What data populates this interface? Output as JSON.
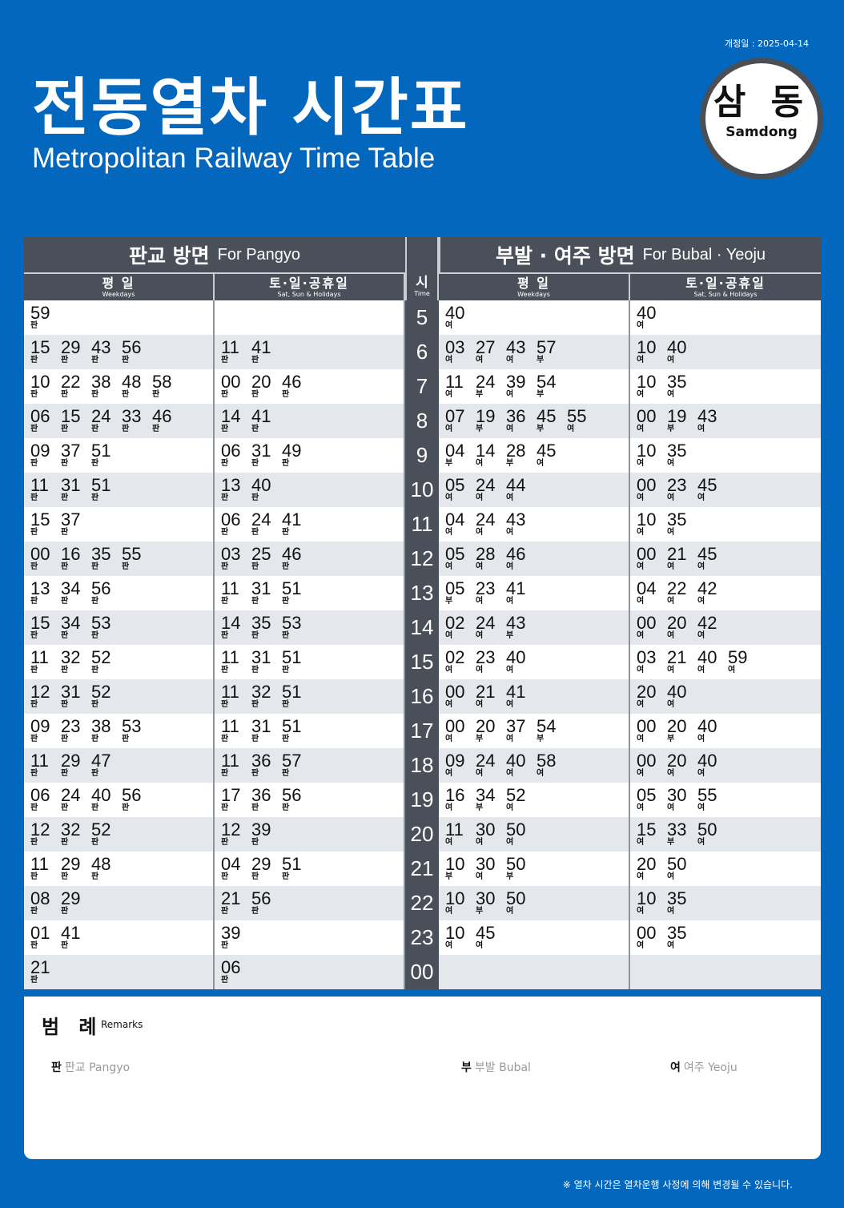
{
  "revision": "개정일 : 2025-04-14",
  "title_ko": "전동열차 시간표",
  "title_en": "Metropolitan Railway Time Table",
  "station": {
    "ko": "삼 동",
    "en": "Samdong"
  },
  "left": {
    "title_ko": "판교 방면",
    "title_en": "For Pangyo"
  },
  "right": {
    "title_ko": "부발 · 여주 방면",
    "title_en": "For Bubal · Yeoju"
  },
  "weekday": {
    "ko": "평 일",
    "en": "Weekdays"
  },
  "weekend": {
    "ko": "토·일·공휴일",
    "en": "Sat, Sun & Holidays"
  },
  "time_hdr": {
    "ko": "시",
    "en": "Time"
  },
  "rows": [
    {
      "h": "5",
      "lw": [
        "59판"
      ],
      "le": [],
      "rw": [
        "40여"
      ],
      "re": [
        "40여"
      ]
    },
    {
      "h": "6",
      "lw": [
        "15판",
        "29판",
        "43판",
        "56판"
      ],
      "le": [
        "11판",
        "41판"
      ],
      "rw": [
        "03여",
        "27여",
        "43여",
        "57부"
      ],
      "re": [
        "10여",
        "40여"
      ]
    },
    {
      "h": "7",
      "lw": [
        "10판",
        "22판",
        "38판",
        "48판",
        "58판"
      ],
      "le": [
        "00판",
        "20판",
        "46판"
      ],
      "rw": [
        "11여",
        "24부",
        "39여",
        "54부"
      ],
      "re": [
        "10여",
        "35여"
      ]
    },
    {
      "h": "8",
      "lw": [
        "06판",
        "15판",
        "24판",
        "33판",
        "46판"
      ],
      "le": [
        "14판",
        "41판"
      ],
      "rw": [
        "07여",
        "19부",
        "36여",
        "45부",
        "55여"
      ],
      "re": [
        "00여",
        "19부",
        "43여"
      ]
    },
    {
      "h": "9",
      "lw": [
        "09판",
        "37판",
        "51판"
      ],
      "le": [
        "06판",
        "31판",
        "49판"
      ],
      "rw": [
        "04부",
        "14여",
        "28부",
        "45여"
      ],
      "re": [
        "10여",
        "35여"
      ]
    },
    {
      "h": "10",
      "lw": [
        "11판",
        "31판",
        "51판"
      ],
      "le": [
        "13판",
        "40판"
      ],
      "rw": [
        "05여",
        "24여",
        "44여"
      ],
      "re": [
        "00여",
        "23여",
        "45여"
      ]
    },
    {
      "h": "11",
      "lw": [
        "15판",
        "37판"
      ],
      "le": [
        "06판",
        "24판",
        "41판"
      ],
      "rw": [
        "04여",
        "24여",
        "43여"
      ],
      "re": [
        "10여",
        "35여"
      ]
    },
    {
      "h": "12",
      "lw": [
        "00판",
        "16판",
        "35판",
        "55판"
      ],
      "le": [
        "03판",
        "25판",
        "46판"
      ],
      "rw": [
        "05여",
        "28여",
        "46여"
      ],
      "re": [
        "00여",
        "21여",
        "45여"
      ]
    },
    {
      "h": "13",
      "lw": [
        "13판",
        "34판",
        "56판"
      ],
      "le": [
        "11판",
        "31판",
        "51판"
      ],
      "rw": [
        "05부",
        "23여",
        "41여"
      ],
      "re": [
        "04여",
        "22여",
        "42여"
      ]
    },
    {
      "h": "14",
      "lw": [
        "15판",
        "34판",
        "53판"
      ],
      "le": [
        "14판",
        "35판",
        "53판"
      ],
      "rw": [
        "02여",
        "24여",
        "43부"
      ],
      "re": [
        "00여",
        "20여",
        "42여"
      ]
    },
    {
      "h": "15",
      "lw": [
        "11판",
        "32판",
        "52판"
      ],
      "le": [
        "11판",
        "31판",
        "51판"
      ],
      "rw": [
        "02여",
        "23여",
        "40여"
      ],
      "re": [
        "03여",
        "21여",
        "40여",
        "59여"
      ]
    },
    {
      "h": "16",
      "lw": [
        "12판",
        "31판",
        "52판"
      ],
      "le": [
        "11판",
        "32판",
        "51판"
      ],
      "rw": [
        "00여",
        "21여",
        "41여"
      ],
      "re": [
        "20여",
        "40여"
      ]
    },
    {
      "h": "17",
      "lw": [
        "09판",
        "23판",
        "38판",
        "53판"
      ],
      "le": [
        "11판",
        "31판",
        "51판"
      ],
      "rw": [
        "00여",
        "20부",
        "37여",
        "54부"
      ],
      "re": [
        "00여",
        "20부",
        "40여"
      ]
    },
    {
      "h": "18",
      "lw": [
        "11판",
        "29판",
        "47판"
      ],
      "le": [
        "11판",
        "36판",
        "57판"
      ],
      "rw": [
        "09여",
        "24여",
        "40여",
        "58여"
      ],
      "re": [
        "00여",
        "20여",
        "40여"
      ]
    },
    {
      "h": "19",
      "lw": [
        "06판",
        "24판",
        "40판",
        "56판"
      ],
      "le": [
        "17판",
        "36판",
        "56판"
      ],
      "rw": [
        "16여",
        "34부",
        "52여"
      ],
      "re": [
        "05여",
        "30여",
        "55여"
      ]
    },
    {
      "h": "20",
      "lw": [
        "12판",
        "32판",
        "52판"
      ],
      "le": [
        "12판",
        "39판"
      ],
      "rw": [
        "11여",
        "30여",
        "50여"
      ],
      "re": [
        "15여",
        "33부",
        "50여"
      ]
    },
    {
      "h": "21",
      "lw": [
        "11판",
        "29판",
        "48판"
      ],
      "le": [
        "04판",
        "29판",
        "51판"
      ],
      "rw": [
        "10부",
        "30여",
        "50부"
      ],
      "re": [
        "20여",
        "50여"
      ]
    },
    {
      "h": "22",
      "lw": [
        "08판",
        "29판"
      ],
      "le": [
        "21판",
        "56판"
      ],
      "rw": [
        "10여",
        "30부",
        "50여"
      ],
      "re": [
        "10여",
        "35여"
      ]
    },
    {
      "h": "23",
      "lw": [
        "01판",
        "41판"
      ],
      "le": [
        "39판"
      ],
      "rw": [
        "10여",
        "45여"
      ],
      "re": [
        "00여",
        "35여"
      ]
    },
    {
      "h": "00",
      "lw": [
        "21판"
      ],
      "le": [
        "06판"
      ],
      "rw": [],
      "re": []
    }
  ],
  "remarks": {
    "title_ko": "범 례",
    "title_en": "Remarks",
    "legend": [
      {
        "mark": "판",
        "ko": "판교",
        "en": "Pangyo"
      },
      {
        "mark": "부",
        "ko": "부발",
        "en": "Bubal"
      },
      {
        "mark": "여",
        "ko": "여주",
        "en": "Yeoju"
      }
    ]
  },
  "notice": "※ 열차 시간은 열차운행 사정에 의해 변경될 수 있습니다.",
  "colors": {
    "background": "#0467be",
    "header": "#4a5059",
    "row_alt": "#e4e7eb"
  }
}
